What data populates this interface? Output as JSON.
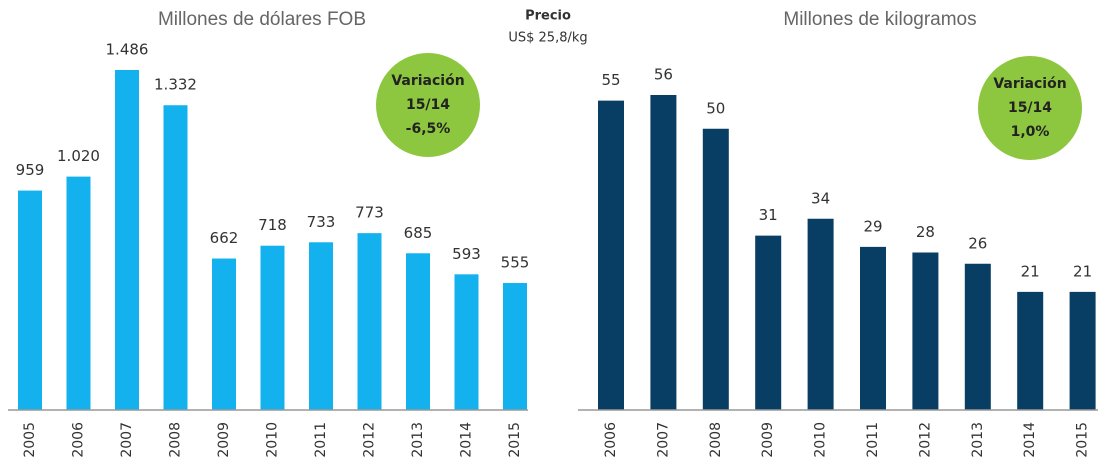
{
  "price": {
    "label": "Precio",
    "value": "US$ 25,8/kg"
  },
  "chart_data": [
    {
      "type": "bar",
      "title": "Millones de dólares FOB",
      "color": "#14b1ef",
      "categories": [
        "2005",
        "2006",
        "2007",
        "2008",
        "2009",
        "2010",
        "2011",
        "2012",
        "2013",
        "2014",
        "2015"
      ],
      "values": [
        959,
        1020,
        1486,
        1332,
        662,
        718,
        733,
        773,
        685,
        593,
        555
      ],
      "value_labels": [
        "959",
        "1.020",
        "1.486",
        "1.332",
        "662",
        "718",
        "733",
        "773",
        "685",
        "593",
        "555"
      ],
      "badge": [
        "Variación",
        "15/14",
        "-6,5%"
      ]
    },
    {
      "type": "bar",
      "title": "Millones de kilogramos",
      "color": "#083e63",
      "categories": [
        "2006",
        "2007",
        "2008",
        "2009",
        "2010",
        "2011",
        "2012",
        "2013",
        "2014",
        "2015"
      ],
      "values": [
        55,
        56,
        50,
        31,
        34,
        29,
        28,
        26,
        21,
        21
      ],
      "badge": [
        "Variación",
        "15/14",
        "1,0%"
      ]
    }
  ]
}
